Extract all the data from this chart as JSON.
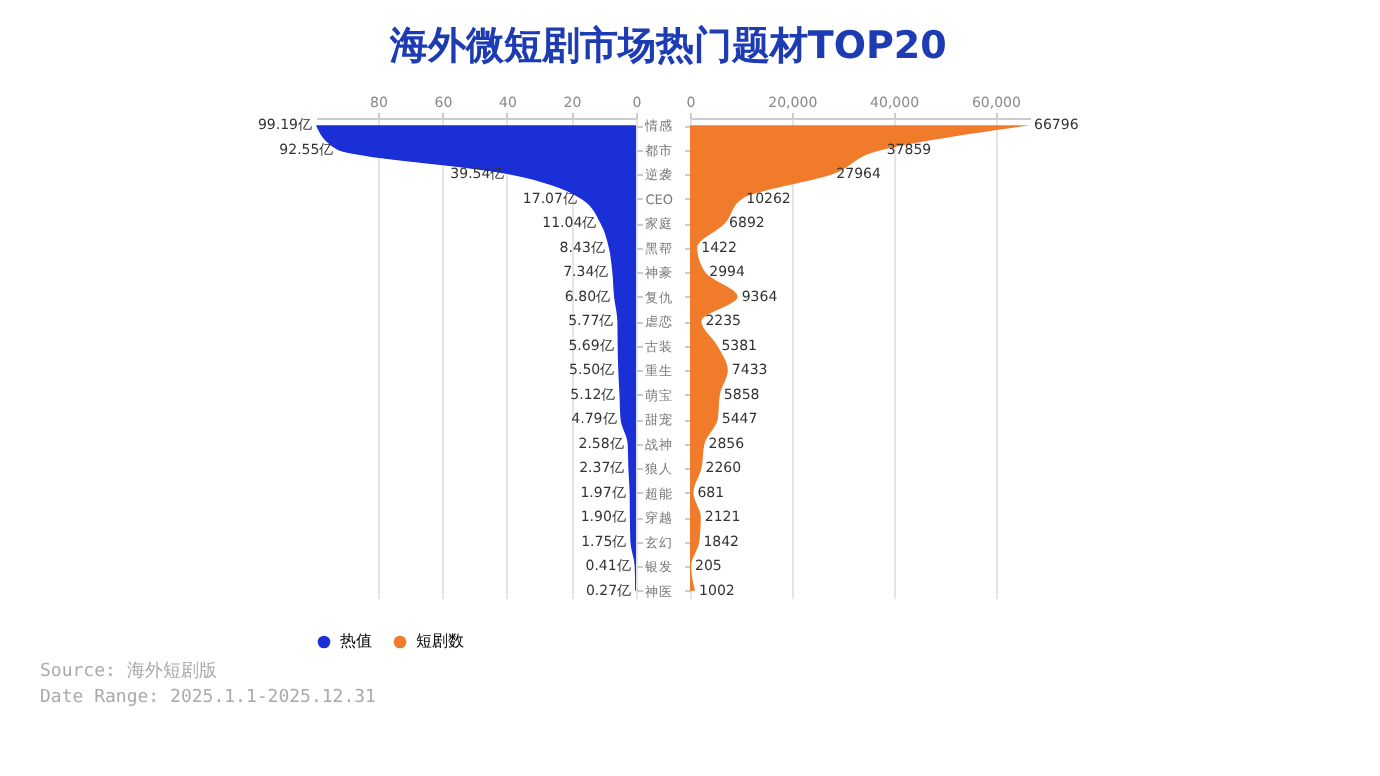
{
  "chart_data": [
    {
      "type": "area",
      "orientation": "horizontal",
      "title": "海外微短剧市场热门题材TOP20",
      "annotations": [
        "Source: 海外短剧版",
        "Date Range: 2025.1.1-2025.12.31"
      ],
      "categories": [
        "情感",
        "都市",
        "逆袭",
        "CEO",
        "家庭",
        "黑帮",
        "神豪",
        "复仇",
        "虐恋",
        "古装",
        "重生",
        "萌宝",
        "甜宠",
        "战神",
        "狼人",
        "超能",
        "穿越",
        "玄幻",
        "银发",
        "神医"
      ],
      "series": [
        {
          "name": "热值",
          "color": "#1a2fd6",
          "values": [
            99.19,
            92.55,
            39.54,
            17.07,
            11.04,
            8.43,
            7.34,
            6.8,
            5.77,
            5.69,
            5.5,
            5.12,
            4.79,
            2.58,
            2.37,
            1.97,
            1.9,
            1.75,
            0.41,
            0.27
          ],
          "value_labels": [
            "99.19亿",
            "92.55亿",
            "39.54亿",
            "17.07亿",
            "11.04亿",
            "8.43亿",
            "7.34亿",
            "6.80亿",
            "5.77亿",
            "5.69亿",
            "5.50亿",
            "5.12亿",
            "4.79亿",
            "2.58亿",
            "2.37亿",
            "1.97亿",
            "1.90亿",
            "1.75亿",
            "0.41亿",
            "0.27亿"
          ]
        }
      ],
      "xlim": [
        99.19,
        0
      ],
      "xticks": [
        80,
        60,
        40,
        20,
        0
      ],
      "grid": "x",
      "legend": "bottom",
      "tick_labels": "x"
    },
    {
      "type": "area",
      "orientation": "horizontal",
      "categories": [
        "情感",
        "都市",
        "逆袭",
        "CEO",
        "家庭",
        "黑帮",
        "神豪",
        "复仇",
        "虐恋",
        "古装",
        "重生",
        "萌宝",
        "甜宠",
        "战神",
        "狼人",
        "超能",
        "穿越",
        "玄幻",
        "银发",
        "神医"
      ],
      "series": [
        {
          "name": "短剧数",
          "color": "#f07b2a",
          "values": [
            66796,
            37859,
            27964,
            10262,
            6892,
            1422,
            2994,
            9364,
            2235,
            5381,
            7433,
            5858,
            5447,
            2856,
            2260,
            681,
            2121,
            1842,
            205,
            1002
          ]
        }
      ],
      "xlim": [
        0,
        66796
      ],
      "xticks": [
        0,
        {
          "value": 20000,
          "label": "20,000"
        },
        {
          "value": 40000,
          "label": "40,000"
        },
        {
          "value": 60000,
          "label": "60,000"
        }
      ],
      "grid": "x",
      "legend": "bottom",
      "data_labels": true
    }
  ]
}
